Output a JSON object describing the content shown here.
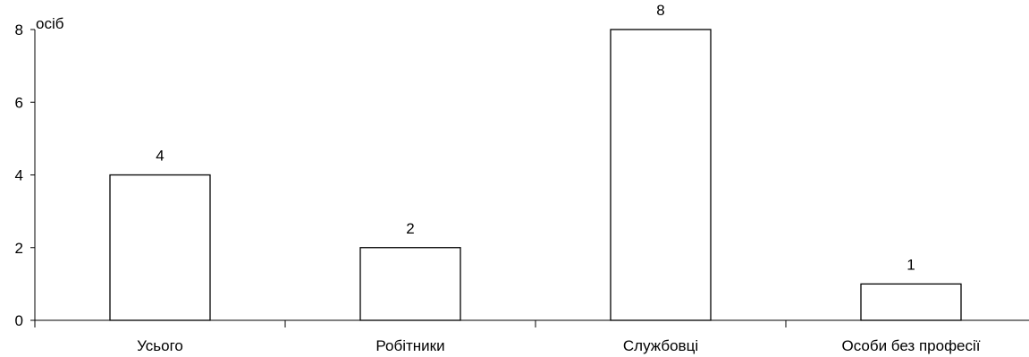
{
  "chart_data": {
    "type": "bar",
    "title": "",
    "xlabel": "",
    "ylabel": "осіб",
    "categories": [
      "Усього",
      "Робітники",
      "Службовці",
      "Особи без професії"
    ],
    "values": [
      4,
      2,
      8,
      1
    ],
    "data_labels": [
      "4",
      "2",
      "8",
      "1"
    ],
    "ylim": [
      0,
      8
    ],
    "yticks": [
      0,
      2,
      4,
      6,
      8
    ],
    "grid": false,
    "legend": "none",
    "bar_fill": "#ffffff",
    "bar_stroke": "#000000",
    "axis_color": "#000000"
  }
}
